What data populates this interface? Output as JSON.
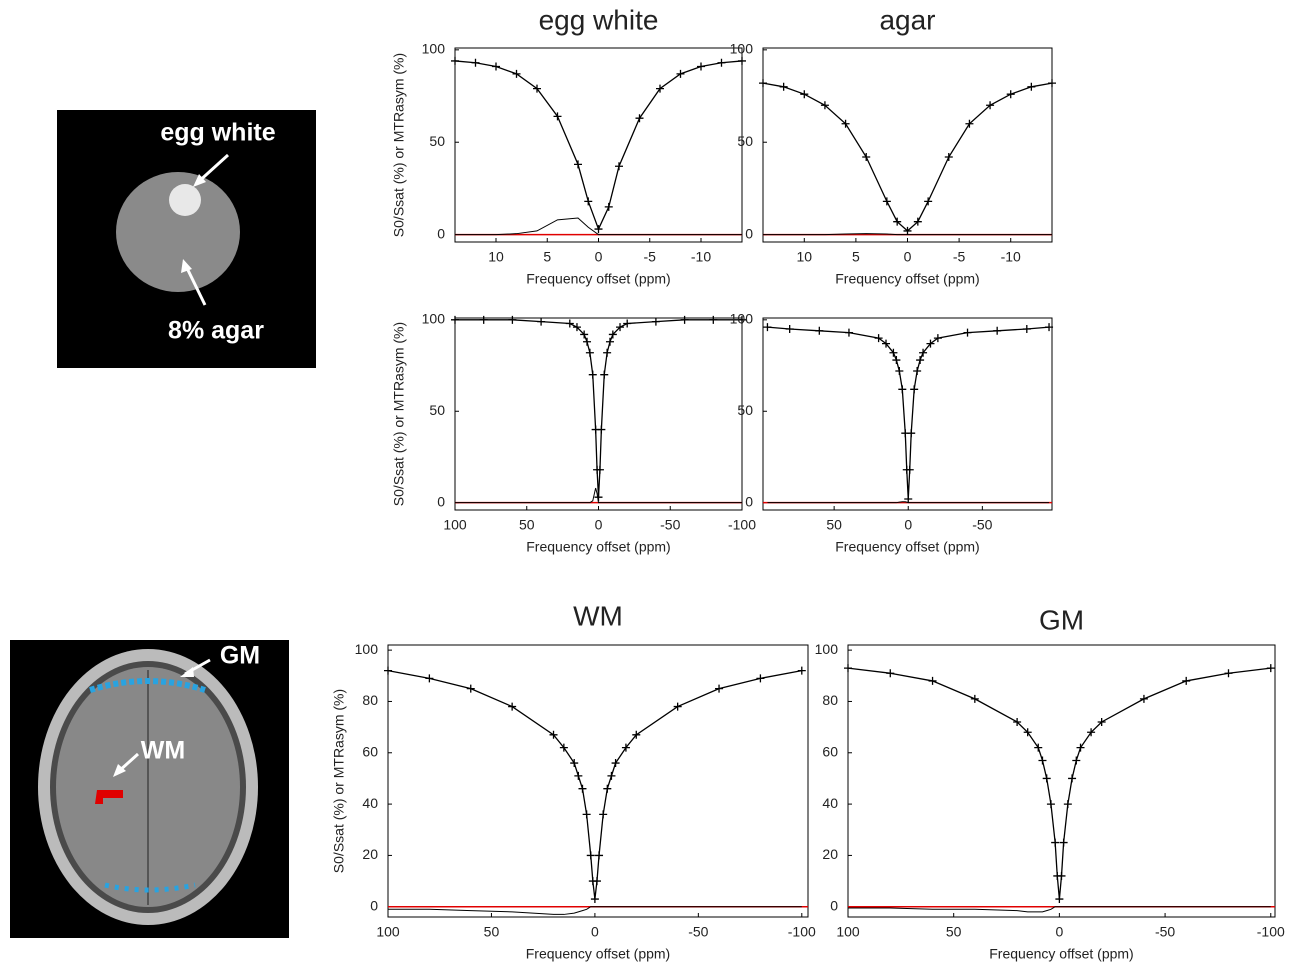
{
  "images": [
    {
      "labels": [
        "egg white",
        "8% agar"
      ]
    },
    {
      "labels": [
        "GM",
        "WM"
      ]
    }
  ],
  "chart_data": [
    {
      "type": "line",
      "title": "egg white",
      "xlabel": "Frequency offset (ppm)",
      "ylabel": "S0/Ssat (%) or MTRasym (%)",
      "x": [
        14,
        12,
        10,
        8,
        6,
        4,
        2,
        1,
        0,
        -1,
        -2,
        -4,
        -6,
        -8,
        -10,
        -12,
        -14
      ],
      "series": [
        {
          "color": "#000000",
          "marker": "+",
          "values": [
            94,
            93,
            91,
            87,
            79,
            64,
            38,
            18,
            3,
            15,
            37,
            63,
            79,
            87,
            91,
            93,
            94
          ]
        },
        {
          "color": "#000000",
          "values": [
            0,
            0,
            0,
            0.5,
            2,
            8,
            9,
            4,
            0,
            0,
            0,
            0,
            0,
            0,
            0,
            0,
            0
          ]
        }
      ],
      "xlim": [
        14,
        -14
      ],
      "ylim": [
        -4,
        101
      ],
      "xticks": [
        10,
        5,
        0,
        -5,
        -10
      ],
      "yticks": [
        0,
        50,
        100
      ],
      "reference_line": {
        "value": 0,
        "color": "#e00000"
      }
    },
    {
      "type": "line",
      "title": "agar",
      "xlabel": "Frequency offset (ppm)",
      "x": [
        14,
        12,
        10,
        8,
        6,
        4,
        2,
        1,
        0,
        -1,
        -2,
        -4,
        -6,
        -8,
        -10,
        -12,
        -14
      ],
      "series": [
        {
          "color": "#000000",
          "marker": "+",
          "values": [
            82,
            80,
            76,
            70,
            60,
            42,
            18,
            7,
            2,
            7,
            18,
            42,
            60,
            70,
            76,
            80,
            82
          ]
        },
        {
          "color": "#000000",
          "values": [
            0,
            0,
            0,
            0,
            0.3,
            0.5,
            0.3,
            0,
            0,
            0,
            0,
            0,
            0,
            0,
            0,
            0,
            0
          ]
        }
      ],
      "xlim": [
        14,
        -14
      ],
      "ylim": [
        -4,
        101
      ],
      "xticks": [
        10,
        5,
        0,
        -5,
        -10
      ],
      "yticks": [
        0,
        50,
        100
      ],
      "reference_line": {
        "value": 0,
        "color": "#e00000"
      }
    },
    {
      "type": "line",
      "xlabel": "Frequency offset (ppm)",
      "ylabel": "S0/Ssat (%) or MTRasym (%)",
      "x": [
        100,
        80,
        60,
        40,
        20,
        15,
        10,
        8,
        6,
        4,
        2,
        1,
        0,
        -1,
        -2,
        -4,
        -6,
        -8,
        -10,
        -15,
        -20,
        -40,
        -60,
        -80,
        -100
      ],
      "series": [
        {
          "color": "#000000",
          "marker": "+",
          "values": [
            100,
            100,
            100,
            99,
            98,
            96,
            92,
            88,
            82,
            70,
            40,
            18,
            3,
            18,
            40,
            70,
            82,
            88,
            92,
            96,
            98,
            99,
            100,
            100,
            100
          ]
        },
        {
          "color": "#000000",
          "values": [
            0,
            0,
            0,
            0,
            0,
            0,
            0,
            0,
            0,
            1,
            8,
            5,
            0,
            0,
            0,
            0,
            0,
            0,
            0,
            0,
            0,
            0,
            0,
            0,
            0
          ]
        }
      ],
      "xlim": [
        100,
        -100
      ],
      "ylim": [
        -4,
        101
      ],
      "xticks": [
        100,
        50,
        0,
        -50,
        -100
      ],
      "yticks": [
        0,
        50,
        100
      ],
      "reference_line": {
        "value": 0,
        "color": "#e00000"
      }
    },
    {
      "type": "line",
      "xlabel": "Frequency offset (ppm)",
      "x": [
        95,
        80,
        60,
        40,
        20,
        15,
        10,
        8,
        6,
        4,
        2,
        1,
        0,
        -1,
        -2,
        -4,
        -6,
        -8,
        -10,
        -15,
        -20,
        -40,
        -60,
        -80,
        -95
      ],
      "series": [
        {
          "color": "#000000",
          "marker": "+",
          "values": [
            96,
            95,
            94,
            93,
            90,
            87,
            82,
            78,
            72,
            62,
            38,
            18,
            2,
            18,
            38,
            62,
            72,
            78,
            82,
            87,
            90,
            93,
            94,
            95,
            96
          ]
        },
        {
          "color": "#000000",
          "values": [
            0,
            0,
            0,
            0,
            0,
            0,
            0,
            0,
            0.3,
            0.5,
            0.5,
            0.3,
            0,
            0,
            0,
            0,
            0,
            0,
            0,
            0,
            0,
            0,
            0,
            0,
            0
          ]
        }
      ],
      "xlim": [
        98,
        -97
      ],
      "ylim": [
        -4,
        101
      ],
      "xticks": [
        50,
        0,
        -50
      ],
      "yticks": [
        0,
        50,
        100
      ],
      "reference_line": {
        "value": 0,
        "color": "#e00000"
      }
    },
    {
      "type": "line",
      "title": "WM",
      "xlabel": "Frequency offset (ppm)",
      "ylabel": "S0/Ssat (%) or MTRasym (%)",
      "x": [
        100,
        80,
        60,
        40,
        20,
        15,
        10,
        8,
        6,
        4,
        2,
        1,
        0,
        -1,
        -2,
        -4,
        -6,
        -8,
        -10,
        -15,
        -20,
        -40,
        -60,
        -80,
        -100
      ],
      "series": [
        {
          "color": "#000000",
          "marker": "+",
          "values": [
            92,
            89,
            85,
            78,
            67,
            62,
            56,
            51,
            46,
            36,
            20,
            10,
            3,
            10,
            20,
            36,
            46,
            51,
            56,
            62,
            67,
            78,
            85,
            89,
            92
          ]
        },
        {
          "color": "#000000",
          "values": [
            -1,
            -1,
            -1.5,
            -2,
            -3,
            -3,
            -2.5,
            -2,
            -1.5,
            -1,
            0,
            0,
            0,
            0,
            0,
            0,
            0,
            0,
            0,
            0,
            0,
            0,
            0,
            0,
            0
          ]
        }
      ],
      "xlim": [
        100,
        -103
      ],
      "ylim": [
        -4,
        102
      ],
      "xticks": [
        100,
        50,
        0,
        -50,
        -100
      ],
      "yticks": [
        0,
        20,
        40,
        60,
        80,
        100
      ],
      "reference_line": {
        "value": 0,
        "color": "#e00000"
      }
    },
    {
      "type": "line",
      "title": "GM",
      "xlabel": "Frequency offset (ppm)",
      "x": [
        100,
        80,
        60,
        40,
        20,
        15,
        10,
        8,
        6,
        4,
        2,
        1,
        0,
        -1,
        -2,
        -4,
        -6,
        -8,
        -10,
        -15,
        -20,
        -40,
        -60,
        -80,
        -100
      ],
      "series": [
        {
          "color": "#000000",
          "marker": "+",
          "values": [
            93,
            91,
            88,
            81,
            72,
            68,
            62,
            57,
            50,
            40,
            25,
            12,
            3,
            12,
            25,
            40,
            50,
            57,
            62,
            68,
            72,
            81,
            88,
            91,
            93
          ]
        },
        {
          "color": "#000000",
          "values": [
            -0.5,
            -0.5,
            -1,
            -1,
            -1.5,
            -2,
            -2,
            -2,
            -1.5,
            -1,
            0,
            0,
            0,
            0,
            0,
            0,
            0,
            0,
            0,
            0,
            0,
            0,
            0,
            0,
            0
          ]
        }
      ],
      "xlim": [
        100,
        -102
      ],
      "ylim": [
        -4,
        102
      ],
      "xticks": [
        100,
        50,
        0,
        -50,
        -100
      ],
      "yticks": [
        0,
        20,
        40,
        60,
        80,
        100
      ],
      "reference_line": {
        "value": 0,
        "color": "#e00000"
      }
    }
  ]
}
